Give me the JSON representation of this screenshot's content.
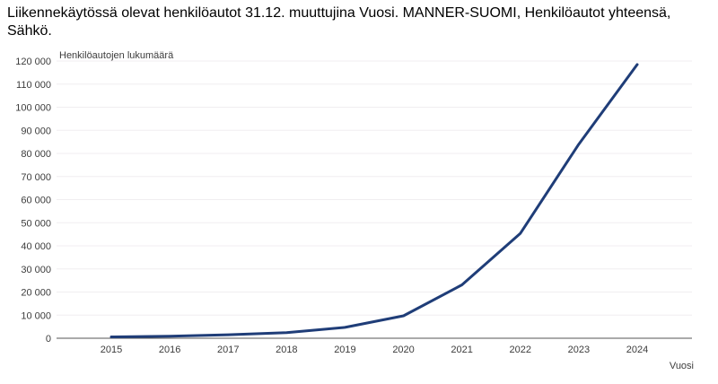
{
  "title": "Liikennekäytössä olevat henkilöautot 31.12. muuttujina Vuosi. MANNER-SUOMI, Henkilöautot yhteensä, Sähkö.",
  "chart_data": {
    "type": "line",
    "categories": [
      "2015",
      "2016",
      "2017",
      "2018",
      "2019",
      "2020",
      "2021",
      "2022",
      "2023",
      "2024"
    ],
    "values": [
      600,
      900,
      1500,
      2400,
      4700,
      9700,
      23100,
      45400,
      84000,
      118500
    ],
    "series_label": "MANNER-SUOMI, Henkilöautot yhteensä, Sähkö",
    "xlabel": "Vuosi",
    "ylabel": "Henkilöautojen lukumäärä",
    "ylim": [
      0,
      120000
    ],
    "ytick_step": 10000,
    "yticks": [
      "0",
      "10 000",
      "20 000",
      "30 000",
      "40 000",
      "50 000",
      "60 000",
      "70 000",
      "80 000",
      "90 000",
      "100 000",
      "110 000",
      "120 000"
    ],
    "grid": true,
    "legend_position": "none",
    "colors": {
      "line": "#1f3d78",
      "axis": "#555555",
      "grid": "#f0eef0",
      "tick_text": "#3c3c3c",
      "title_text": "#000000",
      "background": "#ffffff"
    }
  }
}
